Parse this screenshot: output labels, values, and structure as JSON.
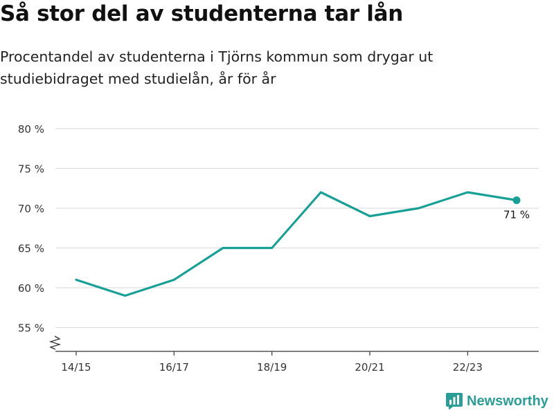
{
  "title": "Så stor del av studenterna tar lån",
  "subtitle": "Procentandel av studenterna i Tjörns kommun som drygar ut studiebidraget med studielån, år för år",
  "brand": {
    "name": "Newsworthy",
    "icon": "newsworthy-logo-icon",
    "color": "#2a9e96"
  },
  "chart_data": {
    "type": "line",
    "x": [
      "14/15",
      "15/16",
      "16/17",
      "17/18",
      "18/19",
      "19/20",
      "20/21",
      "21/22",
      "22/23",
      "23/24"
    ],
    "x_tick_labels": [
      "14/15",
      "16/17",
      "18/19",
      "20/21",
      "22/23"
    ],
    "series": [
      {
        "values": [
          61,
          59,
          61,
          65,
          65,
          72,
          69,
          70,
          72,
          71
        ],
        "color": "#17a096"
      }
    ],
    "ylim": [
      52,
      80
    ],
    "y_ticks": [
      55,
      60,
      65,
      70,
      75,
      80
    ],
    "y_tick_labels": [
      "55 %",
      "60 %",
      "65 %",
      "70 %",
      "75 %",
      "80 %"
    ],
    "axis_break": true,
    "grid": true,
    "end_label": "71 %",
    "colors": {
      "line": "#17a096",
      "grid": "#dddddd",
      "axis": "#333333"
    }
  }
}
